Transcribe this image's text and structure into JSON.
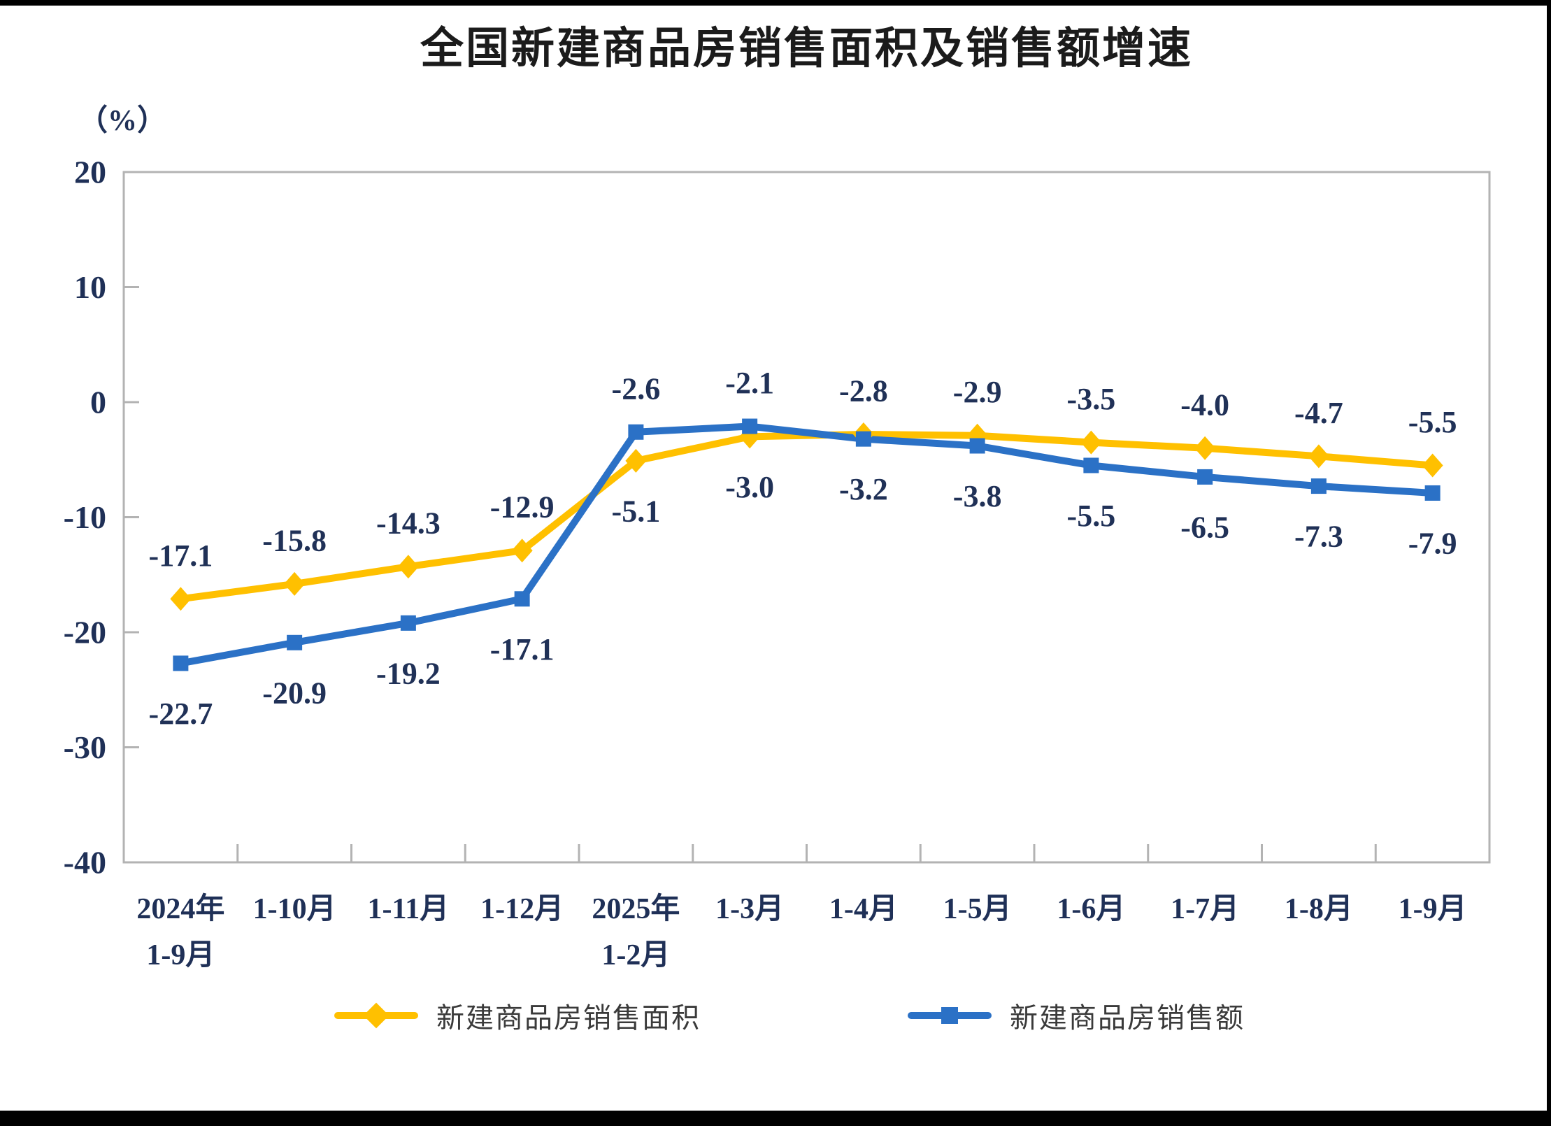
{
  "page": {
    "title": "全国新建商品房销售面积及销售额增速",
    "y_unit_label": "（%）"
  },
  "chart_data": {
    "type": "line",
    "title": "全国新建商品房销售面积及销售额增速",
    "y_unit": "（%）",
    "categories": [
      "2024年\n1-9月",
      "1-10月",
      "1-11月",
      "1-12月",
      "2025年\n1-2月",
      "1-3月",
      "1-4月",
      "1-5月",
      "1-6月",
      "1-7月",
      "1-8月",
      "1-9月"
    ],
    "series": [
      {
        "name": "新建商品房销售面积",
        "marker": "diamond",
        "color": "#FFC000",
        "values": [
          -17.1,
          -15.8,
          -14.3,
          -12.9,
          -5.1,
          -3.0,
          -2.8,
          -2.9,
          -3.5,
          -4.0,
          -4.7,
          -5.5
        ]
      },
      {
        "name": "新建商品房销售额",
        "marker": "square",
        "color": "#2B71C6",
        "values": [
          -22.7,
          -20.9,
          -19.2,
          -17.1,
          -2.6,
          -2.1,
          -3.2,
          -3.8,
          -5.5,
          -6.5,
          -7.3,
          -7.9
        ]
      }
    ],
    "ylim": [
      -40,
      20
    ],
    "yticks": [
      20,
      10,
      0,
      -10,
      -20,
      -30,
      -40
    ],
    "grid": false,
    "legend_position": "bottom",
    "data_labels": true,
    "label_decimals": 1,
    "axis_color": "#b3b3b3",
    "tick_label_color": "#1f3057",
    "data_label_color": "#203157"
  }
}
